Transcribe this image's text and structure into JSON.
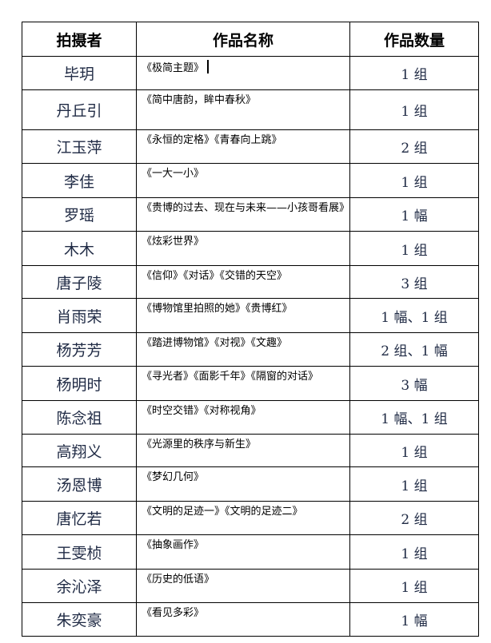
{
  "headers": [
    "拍摄者",
    "作品名称",
    "作品数量"
  ],
  "rows": [
    {
      "photographer": "毕玥",
      "works": "《极简主题》",
      "count": "1 组"
    },
    {
      "photographer": "丹丘引",
      "works": "《简中唐韵，眸中春秋》",
      "count": "1 组"
    },
    {
      "photographer": "江玉萍",
      "works": "《永恒的定格》《青春向上跳》",
      "count": "2 组"
    },
    {
      "photographer": "李佳",
      "works": "《一大一小》",
      "count": "1 组"
    },
    {
      "photographer": "罗瑶",
      "works": "《贵博的过去、现在与未来——小孩哥看展》",
      "count": "1 幅"
    },
    {
      "photographer": "木木",
      "works": "《炫彩世界》",
      "count": "1 组"
    },
    {
      "photographer": "唐子陵",
      "works": "《信仰》《对话》《交错的天空》",
      "count": "3 组"
    },
    {
      "photographer": "肖雨荣",
      "works": "《博物馆里拍照的她》《贵博红》",
      "count": "1 幅、1 组"
    },
    {
      "photographer": "杨芳芳",
      "works": "《踏进博物馆》《对视》《文趣》",
      "count": "2 组、1 幅"
    },
    {
      "photographer": "杨明时",
      "works": "《寻光者》《面影千年》《隔窗的对话》",
      "count": "3 幅"
    },
    {
      "photographer": "陈念祖",
      "works": "《时空交错》《对称视角》",
      "count": "1 幅、1 组"
    },
    {
      "photographer": "高翔义",
      "works": "《光源里的秩序与新生》",
      "count": "1 组"
    },
    {
      "photographer": "汤恩博",
      "works": "《梦幻几何》",
      "count": "1 组"
    },
    {
      "photographer": "唐忆若",
      "works": "《文明的足迹一》《文明的足迹二》",
      "count": "2 组"
    },
    {
      "photographer": "王雯桢",
      "works": "《抽象画作》",
      "count": "1 组"
    },
    {
      "photographer": "余沁泽",
      "works": "《历史的低语》",
      "count": "1 组"
    },
    {
      "photographer": "朱奕豪",
      "works": "《看见多彩》",
      "count": "1 幅"
    }
  ]
}
